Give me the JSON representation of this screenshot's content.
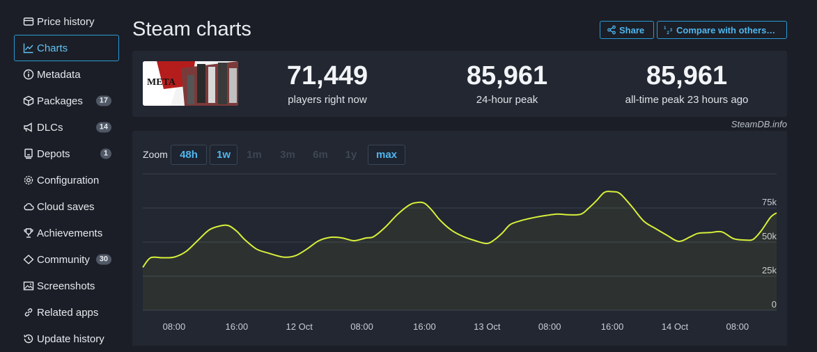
{
  "sidebar": {
    "items": [
      {
        "label": "Price history",
        "icon": "price-tag-icon",
        "active": false
      },
      {
        "label": "Charts",
        "icon": "line-chart-icon",
        "active": true
      },
      {
        "label": "Metadata",
        "icon": "info-icon",
        "active": false
      },
      {
        "label": "Packages",
        "icon": "package-icon",
        "active": false,
        "badge": "17"
      },
      {
        "label": "DLCs",
        "icon": "megaphone-icon",
        "active": false,
        "badge": "14"
      },
      {
        "label": "Depots",
        "icon": "depot-icon",
        "active": false,
        "badge": "1"
      },
      {
        "label": "Configuration",
        "icon": "gear-icon",
        "active": false
      },
      {
        "label": "Cloud saves",
        "icon": "cloud-icon",
        "active": false
      },
      {
        "label": "Achievements",
        "icon": "trophy-icon",
        "active": false
      },
      {
        "label": "Community",
        "icon": "community-icon",
        "active": false,
        "badge": "30"
      },
      {
        "label": "Screenshots",
        "icon": "image-icon",
        "active": false
      },
      {
        "label": "Related apps",
        "icon": "link-icon",
        "active": false
      },
      {
        "label": "Update history",
        "icon": "history-icon",
        "active": false
      }
    ]
  },
  "header": {
    "title": "Steam charts",
    "share_label": "Share",
    "compare_label": "Compare with others…"
  },
  "stats": {
    "current": {
      "value": "71,449",
      "label": "players right now"
    },
    "peak24": {
      "value": "85,961",
      "label": "24-hour peak"
    },
    "alltime": {
      "value": "85,961",
      "label": "all-time peak 23 hours ago"
    },
    "credit": "SteamDB.info"
  },
  "chart": {
    "zoom_label": "Zoom",
    "zoom_options": [
      {
        "label": "48h",
        "enabled": true
      },
      {
        "label": "1w",
        "enabled": true
      },
      {
        "label": "1m",
        "enabled": false
      },
      {
        "label": "3m",
        "enabled": false
      },
      {
        "label": "6m",
        "enabled": false
      },
      {
        "label": "1y",
        "enabled": false
      },
      {
        "label": "max",
        "enabled": true
      }
    ],
    "line_color": "#d8f03a"
  },
  "chart_data": {
    "type": "line",
    "xlabel": "",
    "ylabel": "",
    "x_tick_labels": [
      "08:00",
      "16:00",
      "12 Oct",
      "08:00",
      "16:00",
      "13 Oct",
      "08:00",
      "16:00",
      "14 Oct",
      "08:00"
    ],
    "x_ticks_hours": [
      8,
      16,
      24,
      32,
      40,
      48,
      56,
      64,
      72,
      80
    ],
    "y_tick_labels": [
      "0",
      "25k",
      "50k",
      "75k"
    ],
    "y_ticks": [
      0,
      25000,
      50000,
      75000
    ],
    "xlim": [
      4,
      85
    ],
    "ylim": [
      0,
      100000
    ],
    "grid": true,
    "series": [
      {
        "values_x_hours": [
          4.0,
          5.0,
          6.5,
          8.0,
          9.5,
          11.0,
          12.5,
          14.0,
          15.0,
          16.0,
          17.0,
          18.5,
          20.0,
          22.0,
          23.5,
          25.0,
          26.5,
          28.0,
          29.5,
          31.0,
          32.5,
          33.5,
          35.0,
          36.5,
          38.0,
          39.0,
          40.0,
          41.0,
          42.0,
          43.5,
          45.0,
          46.5,
          48.0,
          49.0,
          50.0,
          51.0,
          52.5,
          54.0,
          55.5,
          57.0,
          58.5,
          60.0,
          61.0,
          62.0,
          63.0,
          64.0,
          65.0,
          66.5,
          68.0,
          69.5,
          71.0,
          72.5,
          74.0,
          75.0,
          76.5,
          78.0,
          79.5,
          81.0,
          82.0,
          83.0,
          84.2,
          85.0
        ],
        "values_y": [
          31500,
          38500,
          38500,
          39000,
          43000,
          51000,
          59000,
          62000,
          62000,
          58000,
          52000,
          45000,
          42000,
          39000,
          40000,
          45000,
          51000,
          53500,
          53000,
          51000,
          53000,
          54000,
          61000,
          70000,
          77000,
          79000,
          78500,
          73000,
          66000,
          58500,
          54000,
          51000,
          49000,
          52000,
          57000,
          63000,
          66000,
          68000,
          69500,
          70500,
          70000,
          70500,
          75000,
          80500,
          86500,
          87000,
          85500,
          76000,
          65500,
          60000,
          55000,
          50500,
          54000,
          56500,
          57000,
          57500,
          52500,
          51500,
          52000,
          58000,
          68000,
          71449
        ]
      }
    ]
  }
}
